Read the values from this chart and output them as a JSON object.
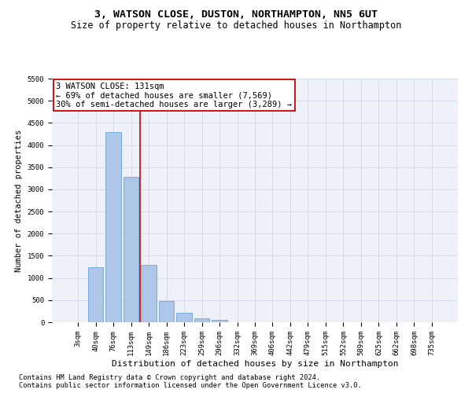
{
  "title": "3, WATSON CLOSE, DUSTON, NORTHAMPTON, NN5 6UT",
  "subtitle": "Size of property relative to detached houses in Northampton",
  "xlabel": "Distribution of detached houses by size in Northampton",
  "ylabel": "Number of detached properties",
  "footer_line1": "Contains HM Land Registry data © Crown copyright and database right 2024.",
  "footer_line2": "Contains public sector information licensed under the Open Government Licence v3.0.",
  "bar_labels": [
    "3sqm",
    "40sqm",
    "76sqm",
    "113sqm",
    "149sqm",
    "186sqm",
    "223sqm",
    "259sqm",
    "296sqm",
    "332sqm",
    "369sqm",
    "406sqm",
    "442sqm",
    "479sqm",
    "515sqm",
    "552sqm",
    "589sqm",
    "625sqm",
    "662sqm",
    "698sqm",
    "735sqm"
  ],
  "bar_values": [
    0,
    1250,
    4300,
    3280,
    1290,
    480,
    215,
    90,
    60,
    0,
    0,
    0,
    0,
    0,
    0,
    0,
    0,
    0,
    0,
    0,
    0
  ],
  "bar_color": "#aec6e8",
  "bar_edge_color": "#5a9bd5",
  "ylim": [
    0,
    5500
  ],
  "yticks": [
    0,
    500,
    1000,
    1500,
    2000,
    2500,
    3000,
    3500,
    4000,
    4500,
    5000,
    5500
  ],
  "vline_color": "#cc0000",
  "annotation_box_edge": "#cc0000",
  "grid_color": "#d0d8e8",
  "bg_color": "#eef2f8",
  "title_fontsize": 9.5,
  "subtitle_fontsize": 8.5,
  "ylabel_fontsize": 7.5,
  "xlabel_fontsize": 8,
  "tick_fontsize": 6.5,
  "annotation_fontsize": 7.5,
  "footer_fontsize": 6.2
}
